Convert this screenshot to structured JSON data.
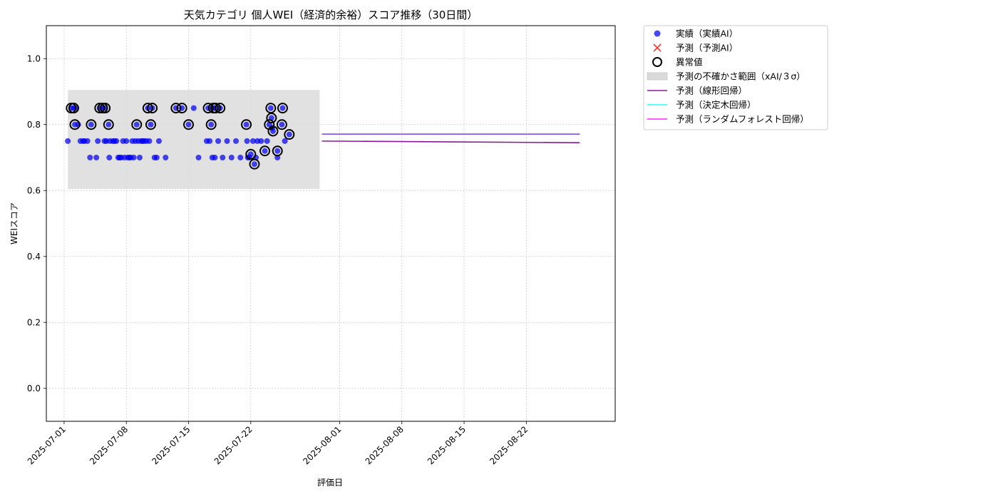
{
  "chart_data": {
    "type": "scatter",
    "title": "天気カテゴリ 個人WEI（経済的余裕）スコア推移（30日間）",
    "xlabel": "評価日",
    "ylabel": "WEIスコア",
    "ylim": [
      -0.1,
      1.1
    ],
    "xlim": [
      "2025-06-29",
      "2025-09-01"
    ],
    "yticks": [
      0.0,
      0.2,
      0.4,
      0.6,
      0.8,
      1.0
    ],
    "yticklabels": [
      "0.0",
      "0.2",
      "0.4",
      "0.6",
      "0.8",
      "1.0"
    ],
    "xticks": [
      "2025-07-01",
      "2025-07-08",
      "2025-07-15",
      "2025-07-22",
      "2025-08-01",
      "2025-08-08",
      "2025-08-15",
      "2025-08-22"
    ],
    "grid": true,
    "legend_position": "outside-top-right",
    "colors": {
      "actual": "#0000ee",
      "forecast_marker": "#ff3333",
      "outlier": "#000000",
      "band": "#d9d9d9",
      "linear": "#8b1a9a",
      "tree": "#22ffff",
      "forest": "#ff22ff",
      "mixed_line": "#8855ee"
    },
    "uncertainty_band": {
      "x_start": "2025-07-01 10:00",
      "x_end": "2025-07-29 18:00",
      "y_low": 0.605,
      "y_high": 0.905
    },
    "series": [
      {
        "name": "実績（実績AI）",
        "kind": "scatter",
        "points": [
          [
            "2025-07-01 10:00",
            0.75
          ],
          [
            "2025-07-01 19:00",
            0.85
          ],
          [
            "2025-07-02 02:00",
            0.85
          ],
          [
            "2025-07-02 05:00",
            0.8
          ],
          [
            "2025-07-02 09:00",
            0.85
          ],
          [
            "2025-07-02 14:00",
            0.8
          ],
          [
            "2025-07-02 20:00",
            0.75
          ],
          [
            "2025-07-03 03:00",
            0.75
          ],
          [
            "2025-07-03 07:00",
            0.75
          ],
          [
            "2025-07-03 15:00",
            0.75
          ],
          [
            "2025-07-03 22:00",
            0.7
          ],
          [
            "2025-07-04 01:00",
            0.8
          ],
          [
            "2025-07-04 15:00",
            0.7
          ],
          [
            "2025-07-04 19:00",
            0.75
          ],
          [
            "2025-07-05 00:00",
            0.85
          ],
          [
            "2025-07-05 08:00",
            0.85
          ],
          [
            "2025-07-05 13:00",
            0.75
          ],
          [
            "2025-07-05 15:00",
            0.85
          ],
          [
            "2025-07-05 18:00",
            0.75
          ],
          [
            "2025-07-06 00:00",
            0.8
          ],
          [
            "2025-07-06 02:00",
            0.7
          ],
          [
            "2025-07-06 04:00",
            0.75
          ],
          [
            "2025-07-06 12:00",
            0.75
          ],
          [
            "2025-07-06 16:00",
            0.75
          ],
          [
            "2025-07-06 21:00",
            0.75
          ],
          [
            "2025-07-07 02:00",
            0.7
          ],
          [
            "2025-07-07 06:00",
            0.7
          ],
          [
            "2025-07-07 10:00",
            0.7
          ],
          [
            "2025-07-07 15:00",
            0.75
          ],
          [
            "2025-07-07 19:00",
            0.7
          ],
          [
            "2025-07-08 00:00",
            0.75
          ],
          [
            "2025-07-08 04:00",
            0.7
          ],
          [
            "2025-07-08 08:00",
            0.7
          ],
          [
            "2025-07-08 12:00",
            0.7
          ],
          [
            "2025-07-08 16:00",
            0.75
          ],
          [
            "2025-07-08 20:00",
            0.7
          ],
          [
            "2025-07-09 00:00",
            0.75
          ],
          [
            "2025-07-09 04:00",
            0.8
          ],
          [
            "2025-07-09 08:00",
            0.75
          ],
          [
            "2025-07-09 12:00",
            0.7
          ],
          [
            "2025-07-09 16:00",
            0.75
          ],
          [
            "2025-07-09 20:00",
            0.75
          ],
          [
            "2025-07-10 00:00",
            0.75
          ],
          [
            "2025-07-10 06:00",
            0.75
          ],
          [
            "2025-07-10 10:00",
            0.85
          ],
          [
            "2025-07-10 14:00",
            0.75
          ],
          [
            "2025-07-10 18:00",
            0.8
          ],
          [
            "2025-07-10 22:00",
            0.85
          ],
          [
            "2025-07-11 04:00",
            0.7
          ],
          [
            "2025-07-11 10:00",
            0.7
          ],
          [
            "2025-07-11 16:00",
            0.75
          ],
          [
            "2025-07-12 10:00",
            0.7
          ],
          [
            "2025-07-13 14:00",
            0.85
          ],
          [
            "2025-07-14 06:00",
            0.85
          ],
          [
            "2025-07-15 00:00",
            0.8
          ],
          [
            "2025-07-15 14:00",
            0.85
          ],
          [
            "2025-07-16 03:00",
            0.7
          ],
          [
            "2025-07-17 01:00",
            0.75
          ],
          [
            "2025-07-17 05:00",
            0.85
          ],
          [
            "2025-07-17 09:00",
            0.75
          ],
          [
            "2025-07-17 13:00",
            0.8
          ],
          [
            "2025-07-17 16:00",
            0.7
          ],
          [
            "2025-07-17 19:00",
            0.85
          ],
          [
            "2025-07-17 23:00",
            0.7
          ],
          [
            "2025-07-18 01:00",
            0.85
          ],
          [
            "2025-07-18 08:00",
            0.75
          ],
          [
            "2025-07-18 13:00",
            0.85
          ],
          [
            "2025-07-18 20:00",
            0.7
          ],
          [
            "2025-07-19 08:00",
            0.75
          ],
          [
            "2025-07-19 20:00",
            0.7
          ],
          [
            "2025-07-20 08:00",
            0.75
          ],
          [
            "2025-07-20 20:00",
            0.7
          ],
          [
            "2025-07-21 12:00",
            0.8
          ],
          [
            "2025-07-21 14:00",
            0.75
          ],
          [
            "2025-07-21 16:00",
            0.7
          ],
          [
            "2025-07-21 20:00",
            0.7
          ],
          [
            "2025-07-22 00:00",
            0.71
          ],
          [
            "2025-07-22 06:00",
            0.75
          ],
          [
            "2025-07-22 10:00",
            0.68
          ],
          [
            "2025-07-22 14:00",
            0.7
          ],
          [
            "2025-07-22 18:00",
            0.75
          ],
          [
            "2025-07-23 04:00",
            0.75
          ],
          [
            "2025-07-23 14:00",
            0.72
          ],
          [
            "2025-07-23 20:00",
            0.75
          ],
          [
            "2025-07-24 02:00",
            0.8
          ],
          [
            "2025-07-24 06:00",
            0.85
          ],
          [
            "2025-07-24 08:00",
            0.82
          ],
          [
            "2025-07-24 10:00",
            0.79
          ],
          [
            "2025-07-24 12:00",
            0.78
          ],
          [
            "2025-07-25 00:00",
            0.72
          ],
          [
            "2025-07-25 00:00",
            0.7
          ],
          [
            "2025-07-25 12:00",
            0.8
          ],
          [
            "2025-07-25 14:00",
            0.85
          ],
          [
            "2025-07-25 20:00",
            0.75
          ],
          [
            "2025-07-26 08:00",
            0.77
          ]
        ]
      },
      {
        "name": "異常値",
        "kind": "outlier",
        "points": [
          [
            "2025-07-01 19:00",
            0.85
          ],
          [
            "2025-07-02 02:00",
            0.85
          ],
          [
            "2025-07-02 05:00",
            0.8
          ],
          [
            "2025-07-04 01:00",
            0.8
          ],
          [
            "2025-07-05 00:00",
            0.85
          ],
          [
            "2025-07-05 08:00",
            0.85
          ],
          [
            "2025-07-05 15:00",
            0.85
          ],
          [
            "2025-07-06 00:00",
            0.8
          ],
          [
            "2025-07-09 04:00",
            0.8
          ],
          [
            "2025-07-10 10:00",
            0.85
          ],
          [
            "2025-07-10 18:00",
            0.8
          ],
          [
            "2025-07-10 22:00",
            0.85
          ],
          [
            "2025-07-13 14:00",
            0.85
          ],
          [
            "2025-07-14 06:00",
            0.85
          ],
          [
            "2025-07-15 00:00",
            0.8
          ],
          [
            "2025-07-17 05:00",
            0.85
          ],
          [
            "2025-07-17 13:00",
            0.8
          ],
          [
            "2025-07-17 19:00",
            0.85
          ],
          [
            "2025-07-18 01:00",
            0.85
          ],
          [
            "2025-07-18 13:00",
            0.85
          ],
          [
            "2025-07-21 12:00",
            0.8
          ],
          [
            "2025-07-22 00:00",
            0.71
          ],
          [
            "2025-07-22 10:00",
            0.68
          ],
          [
            "2025-07-23 14:00",
            0.72
          ],
          [
            "2025-07-24 02:00",
            0.8
          ],
          [
            "2025-07-24 06:00",
            0.85
          ],
          [
            "2025-07-24 08:00",
            0.82
          ],
          [
            "2025-07-24 12:00",
            0.78
          ],
          [
            "2025-07-25 00:00",
            0.72
          ],
          [
            "2025-07-25 12:00",
            0.8
          ],
          [
            "2025-07-25 14:00",
            0.85
          ],
          [
            "2025-07-26 08:00",
            0.77
          ]
        ]
      },
      {
        "name": "予測（線形回帰）",
        "kind": "line",
        "points": [
          [
            "2025-07-30 00:00",
            0.75
          ],
          [
            "2025-08-28 00:00",
            0.745
          ]
        ]
      },
      {
        "name": "予測（決定木回帰）",
        "kind": "line",
        "points": [
          [
            "2025-07-30 00:00",
            0.771
          ],
          [
            "2025-08-28 00:00",
            0.771
          ]
        ]
      },
      {
        "name": "予測（ランダムフォレスト回帰）",
        "kind": "line",
        "points": [
          [
            "2025-07-30 00:00",
            0.771
          ],
          [
            "2025-08-28 00:00",
            0.771
          ]
        ]
      }
    ],
    "legend": [
      {
        "label": "実績（実績AI）",
        "symbol": "dot"
      },
      {
        "label": "予測（予測AI）",
        "symbol": "x"
      },
      {
        "label": "異常値",
        "symbol": "ring"
      },
      {
        "label": "予測の不確かさ範囲（xAI/３σ）",
        "symbol": "band"
      },
      {
        "label": "予測（線形回帰）",
        "symbol": "line-linear"
      },
      {
        "label": "予測（決定木回帰）",
        "symbol": "line-tree"
      },
      {
        "label": "予測（ランダムフォレスト回帰）",
        "symbol": "line-forest"
      }
    ]
  }
}
